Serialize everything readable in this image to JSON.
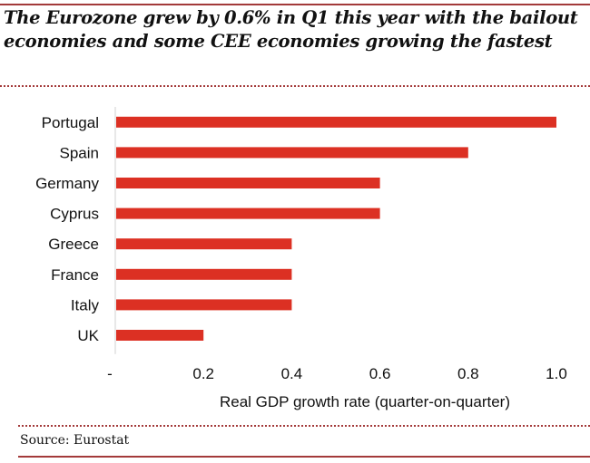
{
  "title": "The Eurozone grew by 0.6% in Q1 this year with the bailout economies and some CEE economies growing the fastest",
  "source": "Source: Eurostat",
  "colors": {
    "bar": "#dc3023",
    "rule": "#a33a3a",
    "axis": "#d0d0d0"
  },
  "chart_data": {
    "type": "bar",
    "orientation": "horizontal",
    "title": "The Eurozone grew by 0.6% in Q1 this year with the bailout economies and some CEE economies growing the fastest",
    "categories": [
      "Portugal",
      "Spain",
      "Germany",
      "Cyprus",
      "Greece",
      "France",
      "Italy",
      "UK"
    ],
    "values": [
      1.0,
      0.8,
      0.6,
      0.6,
      0.4,
      0.4,
      0.4,
      0.2
    ],
    "xlabel": "Real GDP growth rate (quarter-on-quarter)",
    "ylabel": "",
    "xlim": [
      0,
      1.0
    ],
    "xticks": [
      0,
      0.2,
      0.4,
      0.6,
      0.8,
      1.0
    ],
    "xtick_labels": [
      "-",
      "0.2",
      "0.4",
      "0.6",
      "0.8",
      "1.0"
    ],
    "grid": false,
    "legend": "none",
    "source": "Source: Eurostat"
  }
}
